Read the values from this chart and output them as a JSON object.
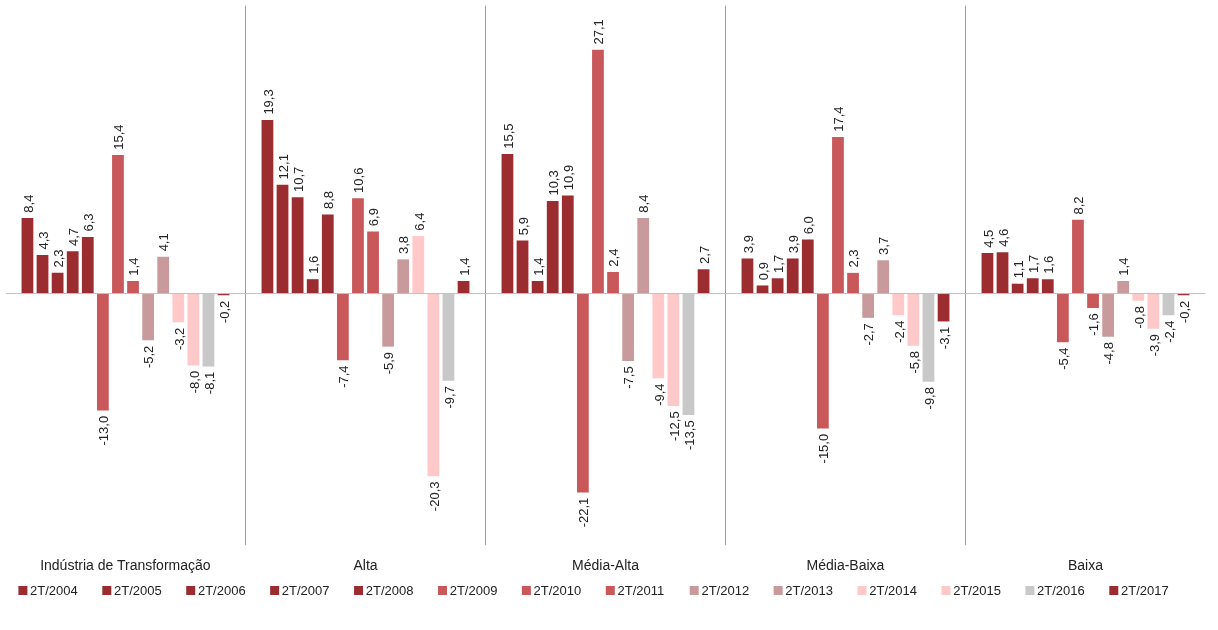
{
  "chart_data": {
    "type": "bar",
    "categories": [
      "Indústria de Transformação",
      "Alta",
      "Média-Alta",
      "Média-Baixa",
      "Baixa"
    ],
    "series": [
      {
        "name": "2T/2004",
        "color": "#9b2d30",
        "values": [
          8.4,
          19.3,
          15.5,
          3.9,
          4.5
        ],
        "value_labels": [
          "8,4",
          "19,3",
          "15,5",
          "3,9",
          "4,5"
        ]
      },
      {
        "name": "2T/2005",
        "color": "#9b2d30",
        "values": [
          4.3,
          12.1,
          5.9,
          0.9,
          4.6
        ],
        "value_labels": [
          "4,3",
          "12,1",
          "5,9",
          "0,9",
          "4,6"
        ]
      },
      {
        "name": "2T/2006",
        "color": "#9b2d30",
        "values": [
          2.3,
          10.7,
          1.4,
          1.7,
          1.1
        ],
        "value_labels": [
          "2,3",
          "10,7",
          "1,4",
          "1,7",
          "1,1"
        ]
      },
      {
        "name": "2T/2007",
        "color": "#9b2d30",
        "values": [
          4.7,
          1.6,
          10.3,
          3.9,
          1.7
        ],
        "value_labels": [
          "4,7",
          "1,6",
          "10,3",
          "3,9",
          "1,7"
        ]
      },
      {
        "name": "2T/2008",
        "color": "#9b2d30",
        "values": [
          6.3,
          8.8,
          10.9,
          6.0,
          1.6
        ],
        "value_labels": [
          "6,3",
          "8,8",
          "10,9",
          "6,0",
          "1,6"
        ]
      },
      {
        "name": "2T/2009",
        "color": "#c9585b",
        "values": [
          -13.0,
          -7.4,
          -22.1,
          -15.0,
          -5.4
        ],
        "value_labels": [
          "-13,0",
          "-7,4",
          "-22,1",
          "-15,0",
          "-5,4"
        ]
      },
      {
        "name": "2T/2010",
        "color": "#c9585b",
        "values": [
          15.4,
          10.6,
          27.1,
          17.4,
          8.2
        ],
        "value_labels": [
          "15,4",
          "10,6",
          "27,1",
          "17,4",
          "8,2"
        ]
      },
      {
        "name": "2T/2011",
        "color": "#c9585b",
        "values": [
          1.4,
          6.9,
          2.4,
          2.3,
          -1.6
        ],
        "value_labels": [
          "1,4",
          "6,9",
          "2,4",
          "2,3",
          "-1,6"
        ]
      },
      {
        "name": "2T/2012",
        "color": "#c89a9b",
        "values": [
          -5.2,
          -5.9,
          -7.5,
          -2.7,
          -4.8
        ],
        "value_labels": [
          "-5,2",
          "-5,9",
          "-7,5",
          "-2,7",
          "-4,8"
        ]
      },
      {
        "name": "2T/2013",
        "color": "#c89a9b",
        "values": [
          4.1,
          3.8,
          8.4,
          3.7,
          1.4
        ],
        "value_labels": [
          "4,1",
          "3,8",
          "8,4",
          "3,7",
          "1,4"
        ]
      },
      {
        "name": "2T/2014",
        "color": "#ffc8c9",
        "values": [
          -3.2,
          6.4,
          -9.4,
          -2.4,
          -0.8
        ],
        "value_labels": [
          "-3,2",
          "6,4",
          "-9,4",
          "-2,4",
          "-0,8"
        ]
      },
      {
        "name": "2T/2015",
        "color": "#ffc8c9",
        "values": [
          -8.0,
          -20.3,
          -12.5,
          -5.8,
          -3.9
        ],
        "value_labels": [
          "-8,0",
          "-20,3",
          "-12,5",
          "-5,8",
          "-3,9"
        ]
      },
      {
        "name": "2T/2016",
        "color": "#c8c8c8",
        "values": [
          -8.1,
          -9.7,
          -13.5,
          -9.8,
          -2.4
        ],
        "value_labels": [
          "-8,1",
          "-9,7",
          "-13,5",
          "-9,8",
          "-2,4"
        ]
      },
      {
        "name": "2T/2017",
        "color": "#9b2d30",
        "values": [
          -0.2,
          1.4,
          2.7,
          -3.1,
          -0.2
        ],
        "value_labels": [
          "-0,2",
          "1,4",
          "2,7",
          "-3,1",
          "-0,2"
        ]
      }
    ],
    "grid": "x",
    "legend": "bottom"
  }
}
